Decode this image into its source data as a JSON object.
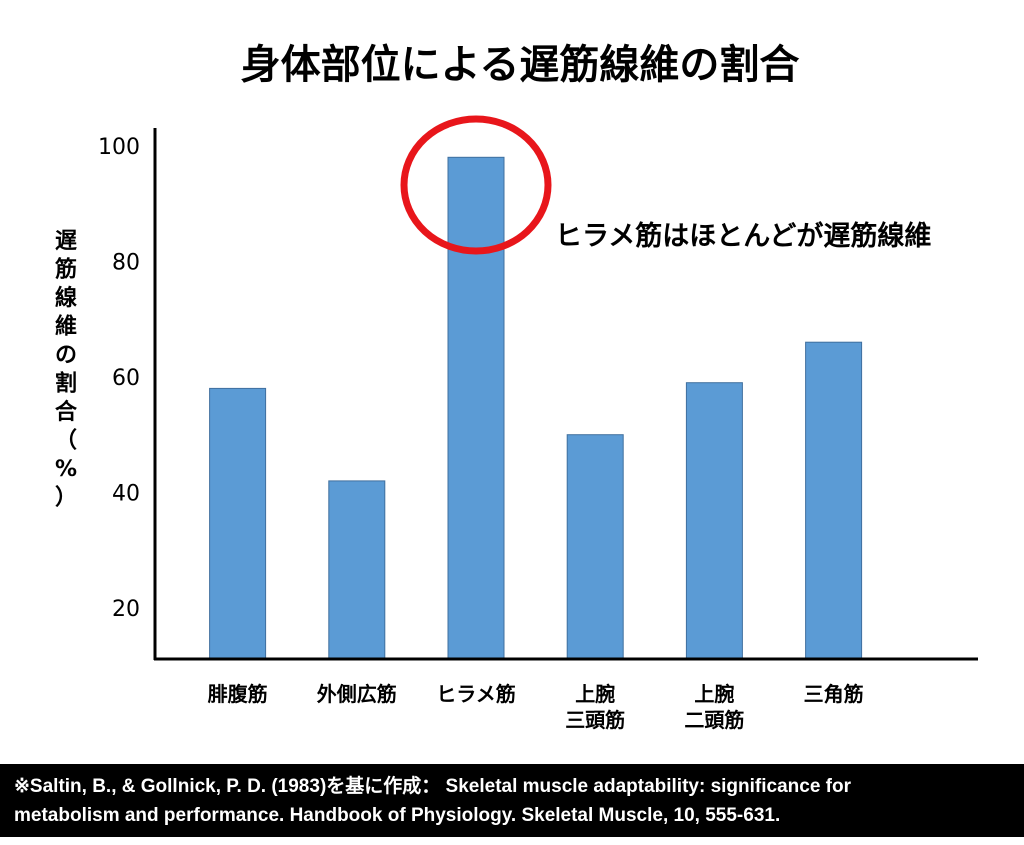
{
  "chart_data": {
    "type": "bar",
    "title": "身体部位による遅筋線維の割合",
    "xlabel": "",
    "ylabel": "遅筋線維の割合（%）",
    "categories": [
      "腓腹筋",
      "外側広筋",
      "ヒラメ筋",
      "上腕\n三頭筋",
      "上腕\n二頭筋",
      "三角筋"
    ],
    "values": [
      58,
      42,
      98,
      50,
      59,
      66
    ],
    "yticks": [
      20,
      40,
      60,
      80,
      100
    ],
    "ylim": [
      11,
      101
    ],
    "bar_color": "#5b9bd5",
    "grid": false,
    "legend": "none",
    "annotation": {
      "text": "ヒラメ筋はほとんどが遅筋線維",
      "target_category": "ヒラメ筋",
      "color": "#e8161b"
    }
  },
  "citation": {
    "line1": "※Saltin, B., & Gollnick, P. D. (1983)を基に作成： Skeletal muscle adaptability: significance for",
    "line2": "metabolism and performance. Handbook of Physiology. Skeletal Muscle, 10, 555-631."
  }
}
